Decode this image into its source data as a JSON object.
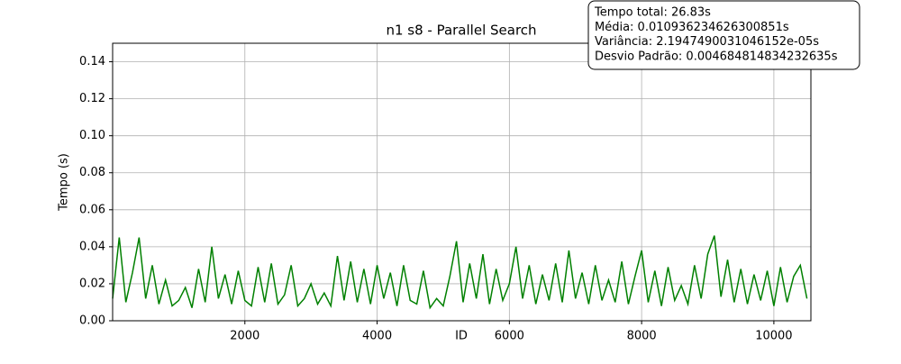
{
  "chart_data": {
    "type": "line",
    "title": "n1 s8 - Parallel Search",
    "x_label": "ID",
    "y_label": "Tempo (s)",
    "annotation": [
      "Tempo total: 26.83s",
      "Média: 0.010936234626300851s",
      "Variância: 2.1947490031046152e-05s",
      "Desvio Padrão: 0.004684814834232635s"
    ],
    "x": [
      0,
      100,
      200,
      300,
      400,
      500,
      600,
      700,
      800,
      900,
      1000,
      1100,
      1200,
      1300,
      1400,
      1500,
      1600,
      1700,
      1800,
      1900,
      2000,
      2100,
      2200,
      2300,
      2400,
      2500,
      2600,
      2700,
      2800,
      2900,
      3000,
      3100,
      3200,
      3300,
      3400,
      3500,
      3600,
      3700,
      3800,
      3900,
      4000,
      4100,
      4200,
      4300,
      4400,
      4500,
      4600,
      4700,
      4800,
      4900,
      5000,
      5100,
      5200,
      5300,
      5400,
      5500,
      5600,
      5700,
      5800,
      5900,
      6000,
      6100,
      6200,
      6300,
      6400,
      6500,
      6600,
      6700,
      6800,
      6900,
      7000,
      7100,
      7200,
      7300,
      7400,
      7500,
      7600,
      7700,
      7800,
      7900,
      8000,
      8100,
      8200,
      8300,
      8400,
      8500,
      8600,
      8700,
      8800,
      8900,
      9000,
      9100,
      9200,
      9300,
      9400,
      9500,
      9600,
      9700,
      9800,
      9900,
      10000,
      10100,
      10200,
      10300,
      10400,
      10500
    ],
    "series": [
      {
        "name": "Tempo",
        "color": "#008000",
        "values": [
          0.012,
          0.045,
          0.01,
          0.026,
          0.045,
          0.012,
          0.03,
          0.009,
          0.022,
          0.008,
          0.011,
          0.018,
          0.007,
          0.028,
          0.01,
          0.04,
          0.012,
          0.025,
          0.009,
          0.027,
          0.011,
          0.008,
          0.029,
          0.01,
          0.031,
          0.009,
          0.014,
          0.03,
          0.008,
          0.012,
          0.02,
          0.009,
          0.015,
          0.008,
          0.035,
          0.011,
          0.032,
          0.01,
          0.028,
          0.009,
          0.03,
          0.012,
          0.026,
          0.008,
          0.03,
          0.011,
          0.009,
          0.027,
          0.007,
          0.012,
          0.008,
          0.024,
          0.043,
          0.01,
          0.031,
          0.012,
          0.036,
          0.009,
          0.028,
          0.011,
          0.02,
          0.04,
          0.012,
          0.03,
          0.009,
          0.025,
          0.011,
          0.031,
          0.01,
          0.038,
          0.012,
          0.026,
          0.009,
          0.03,
          0.011,
          0.022,
          0.01,
          0.032,
          0.009,
          0.024,
          0.038,
          0.01,
          0.027,
          0.008,
          0.029,
          0.011,
          0.019,
          0.009,
          0.03,
          0.012,
          0.036,
          0.046,
          0.013,
          0.033,
          0.01,
          0.028,
          0.009,
          0.025,
          0.011,
          0.027,
          0.008,
          0.029,
          0.01,
          0.024,
          0.03,
          0.012
        ]
      }
    ],
    "xlim": [
      0,
      10560
    ],
    "ylim": [
      0,
      0.15
    ],
    "xticks": [
      2000,
      4000,
      6000,
      8000,
      10000
    ],
    "yticks": [
      {
        "value": 0,
        "label": "0.00"
      },
      0.02,
      0.04,
      0.06,
      0.08,
      {
        "value": 0.1,
        "label": "0.10"
      },
      0.12,
      0.14
    ],
    "grid": true
  }
}
